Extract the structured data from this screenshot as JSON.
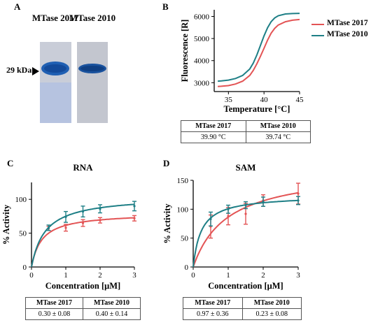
{
  "panels": {
    "A": {
      "letter": "A",
      "lanes": [
        "MTase 2017",
        "MTase 2010"
      ],
      "marker": "29 kDa"
    },
    "B": {
      "letter": "B"
    },
    "C": {
      "letter": "C"
    },
    "D": {
      "letter": "D"
    }
  },
  "legend": {
    "items": [
      {
        "name": "MTase 2017",
        "color": "#e35455"
      },
      {
        "name": "MTase 2010",
        "color": "#1e7f86"
      }
    ]
  },
  "tables": {
    "B": {
      "headers": [
        "MTase 2017",
        "MTase 2010"
      ],
      "values": [
        "39.90 °C",
        "39.74 °C"
      ]
    },
    "C": {
      "headers": [
        "MTase 2017",
        "MTase 2010"
      ],
      "values": [
        "0.30 ± 0.08",
        "0.40 ± 0.14"
      ]
    },
    "D": {
      "headers": [
        "MTase 2017",
        "MTase 2010"
      ],
      "values": [
        "0.97 ± 0.36",
        "0.23 ± 0.08"
      ]
    }
  },
  "chart_data": [
    {
      "id": "B",
      "type": "line",
      "title": "",
      "xlabel": "Temperature [°C]",
      "ylabel": "Fluorescence [R]",
      "xlim": [
        33,
        45
      ],
      "ylim": [
        2600,
        6300
      ],
      "xticks": [
        35,
        40,
        45
      ],
      "yticks": [
        3000,
        4000,
        5000,
        6000
      ],
      "series": [
        {
          "name": "MTase 2017",
          "color": "#e35455",
          "x": [
            33.5,
            34,
            35,
            36,
            37,
            38,
            38.5,
            39,
            39.5,
            40,
            40.5,
            41,
            41.5,
            42,
            43,
            44,
            45
          ],
          "values": [
            2830,
            2840,
            2870,
            2940,
            3070,
            3330,
            3560,
            3860,
            4200,
            4560,
            4930,
            5240,
            5460,
            5610,
            5760,
            5830,
            5860
          ]
        },
        {
          "name": "MTase 2010",
          "color": "#1e7f86",
          "x": [
            33.5,
            34,
            35,
            36,
            37,
            38,
            38.5,
            39,
            39.5,
            40,
            40.5,
            41,
            41.5,
            42,
            43,
            44,
            45
          ],
          "values": [
            3070,
            3080,
            3120,
            3190,
            3330,
            3620,
            3890,
            4260,
            4690,
            5120,
            5490,
            5760,
            5930,
            6030,
            6110,
            6130,
            6140
          ]
        }
      ]
    },
    {
      "id": "C",
      "type": "line",
      "title": "RNA",
      "xlabel": "Concentration [μM]",
      "ylabel": "% Activity",
      "xlim": [
        0,
        3
      ],
      "ylim": [
        0,
        125
      ],
      "xticks": [
        0,
        1,
        2,
        3
      ],
      "yticks": [
        0,
        50,
        100
      ],
      "model": "michaelis-menten",
      "series": [
        {
          "name": "MTase 2017",
          "color": "#e35455",
          "vmax": 80,
          "km": 0.3,
          "points": [
            {
              "x": 0.5,
              "y": 57,
              "err": 3
            },
            {
              "x": 1,
              "y": 58,
              "err": 5
            },
            {
              "x": 1.5,
              "y": 65,
              "err": 5
            },
            {
              "x": 2,
              "y": 69,
              "err": 4
            },
            {
              "x": 3,
              "y": 72,
              "err": 4
            }
          ]
        },
        {
          "name": "MTase 2010",
          "color": "#1e7f86",
          "vmax": 105,
          "km": 0.4,
          "points": [
            {
              "x": 0.5,
              "y": 58,
              "err": 4
            },
            {
              "x": 1,
              "y": 74,
              "err": 8
            },
            {
              "x": 1.5,
              "y": 82,
              "err": 8
            },
            {
              "x": 2,
              "y": 86,
              "err": 6
            },
            {
              "x": 3,
              "y": 90,
              "err": 7
            }
          ]
        }
      ]
    },
    {
      "id": "D",
      "type": "line",
      "title": "SAM",
      "xlabel": "Concentration [μM]",
      "ylabel": "% Activity",
      "xlim": [
        0,
        3
      ],
      "ylim": [
        0,
        150
      ],
      "xticks": [
        0,
        1,
        2,
        3
      ],
      "yticks": [
        0,
        50,
        100,
        150
      ],
      "model": "michaelis-menten",
      "series": [
        {
          "name": "MTase 2017",
          "color": "#e35455",
          "vmax": 170,
          "km": 0.97,
          "points": [
            {
              "x": 0.5,
              "y": 70,
              "err": 20
            },
            {
              "x": 1,
              "y": 88,
              "err": 15
            },
            {
              "x": 1.5,
              "y": 92,
              "err": 18
            },
            {
              "x": 2,
              "y": 115,
              "err": 10
            },
            {
              "x": 3,
              "y": 127,
              "err": 18
            }
          ]
        },
        {
          "name": "MTase 2010",
          "color": "#1e7f86",
          "vmax": 124,
          "km": 0.23,
          "points": [
            {
              "x": 0.5,
              "y": 83,
              "err": 12
            },
            {
              "x": 1,
              "y": 100,
              "err": 7
            },
            {
              "x": 1.5,
              "y": 107,
              "err": 6
            },
            {
              "x": 2,
              "y": 113,
              "err": 8
            },
            {
              "x": 3,
              "y": 115,
              "err": 7
            }
          ]
        }
      ]
    }
  ]
}
